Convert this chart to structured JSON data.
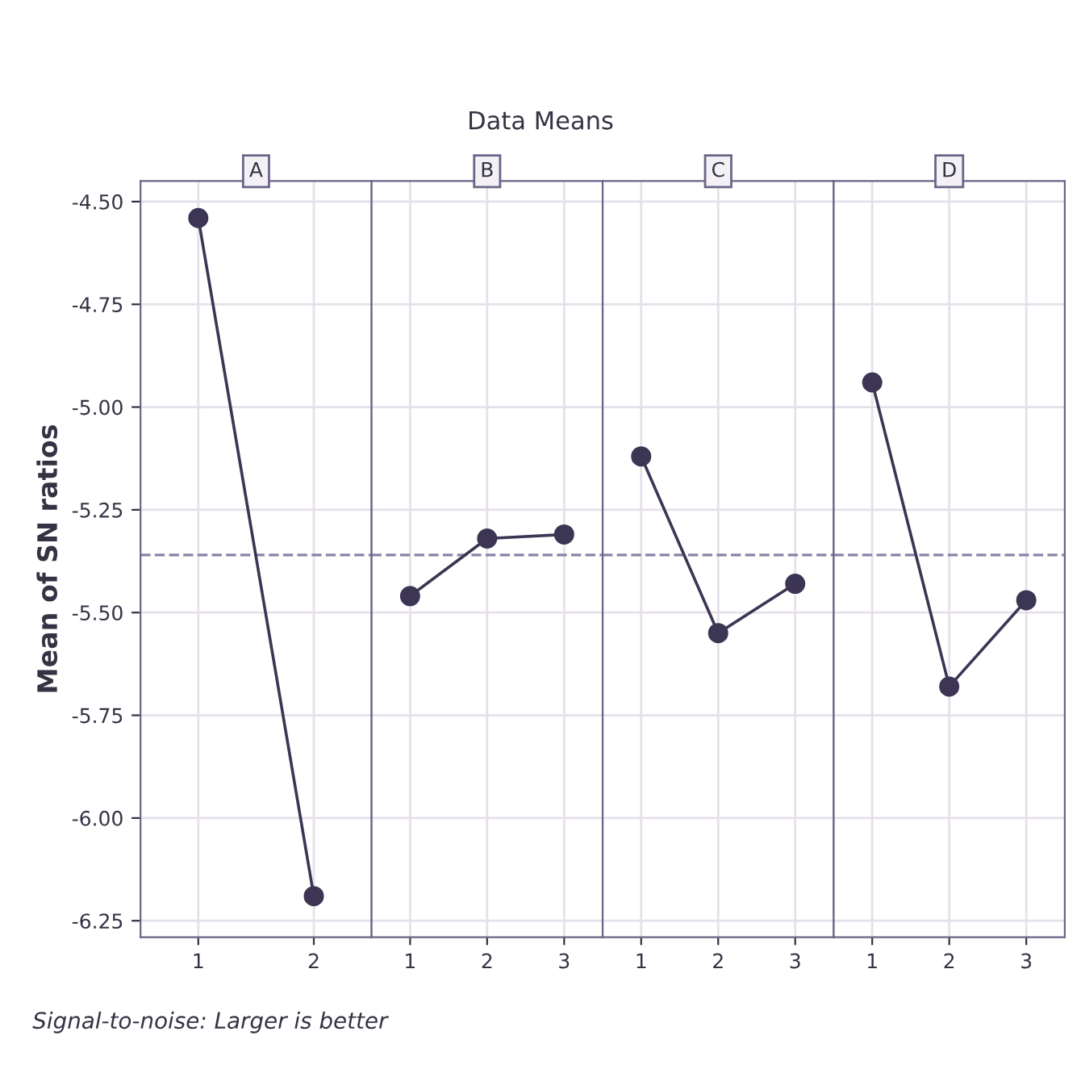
{
  "chart_data": [
    {
      "type": "line",
      "title": "A",
      "ylabel": "Mean of SN ratios",
      "categories": [
        "1",
        "2"
      ],
      "values": [
        -4.54,
        -6.19
      ],
      "color": "#3c3553",
      "marker": "circle",
      "line_style": "solid",
      "grid": true,
      "ylim": [
        -6.29,
        -4.45
      ],
      "yticks": [
        {
          "value": -4.5,
          "label": "-4.50"
        },
        {
          "value": -4.75,
          "label": "-4.75"
        },
        {
          "value": -5.0,
          "label": "-5.00"
        },
        {
          "value": -5.25,
          "label": "-5.25"
        },
        {
          "value": -5.5,
          "label": "-5.50"
        },
        {
          "value": -5.75,
          "label": "-5.75"
        },
        {
          "value": -6.0,
          "label": "-6.00"
        },
        {
          "value": -6.25,
          "label": "-6.25"
        }
      ],
      "ref_lines": [
        {
          "axis": "y",
          "value": -5.36,
          "color": "#8a84a8",
          "line_style": "dashed"
        }
      ],
      "annotations": [
        "Data Means",
        "Signal-to-noise: Larger is better"
      ]
    },
    {
      "type": "line",
      "title": "B",
      "categories": [
        "1",
        "2",
        "3"
      ],
      "values": [
        -5.46,
        -5.32,
        -5.31
      ],
      "color": "#3c3553",
      "marker": "circle",
      "line_style": "solid",
      "grid": true,
      "ylim": [
        -6.29,
        -4.45
      ],
      "tick_labels": "x",
      "ref_lines": [
        {
          "axis": "y",
          "value": -5.36,
          "color": "#8a84a8",
          "line_style": "dashed"
        }
      ]
    },
    {
      "type": "line",
      "title": "C",
      "categories": [
        "1",
        "2",
        "3"
      ],
      "values": [
        -5.12,
        -5.55,
        -5.43
      ],
      "color": "#3c3553",
      "marker": "circle",
      "line_style": "solid",
      "grid": true,
      "ylim": [
        -6.29,
        -4.45
      ],
      "tick_labels": "x",
      "ref_lines": [
        {
          "axis": "y",
          "value": -5.36,
          "color": "#8a84a8",
          "line_style": "dashed"
        }
      ]
    },
    {
      "type": "line",
      "title": "D",
      "categories": [
        "1",
        "2",
        "3"
      ],
      "values": [
        -4.94,
        -5.68,
        -5.47
      ],
      "color": "#3c3553",
      "marker": "circle",
      "line_style": "solid",
      "grid": true,
      "ylim": [
        -6.29,
        -4.45
      ],
      "tick_labels": "x",
      "ref_lines": [
        {
          "axis": "y",
          "value": -5.36,
          "color": "#8a84a8",
          "line_style": "dashed"
        }
      ]
    }
  ]
}
